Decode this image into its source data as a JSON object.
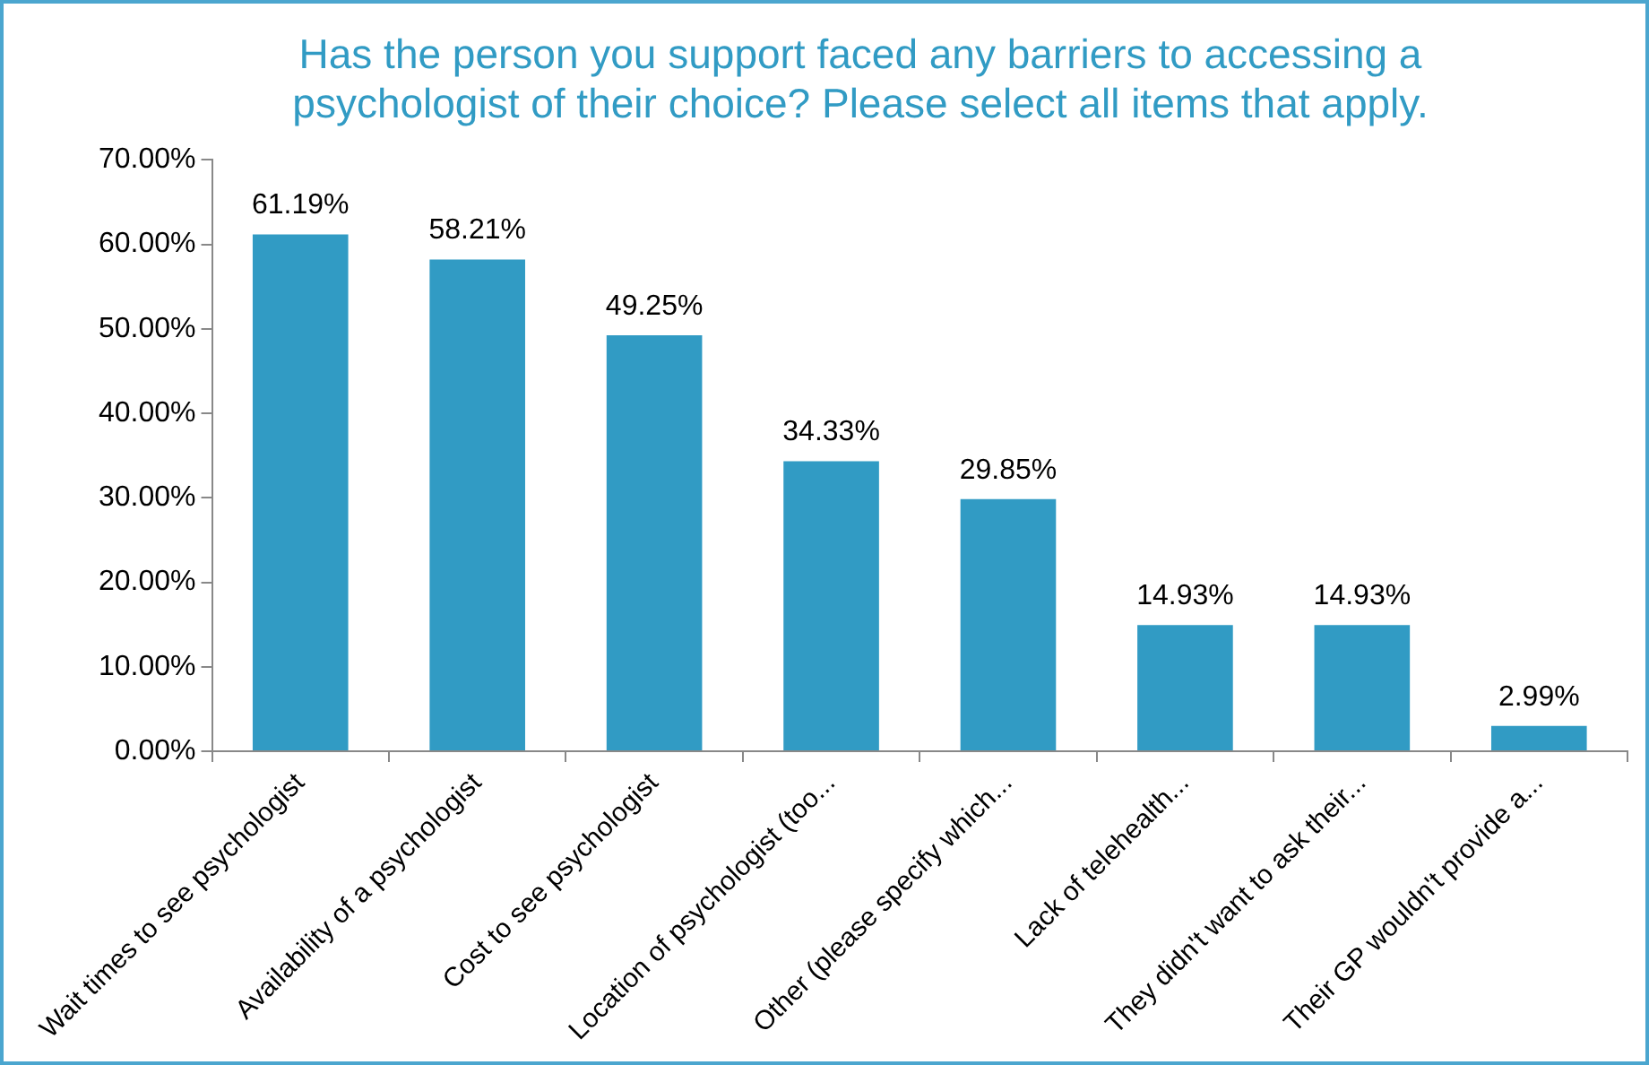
{
  "chart_data": {
    "type": "bar",
    "title": "Has the person you support faced any barriers to accessing a psychologist of their choice? Please select all items that apply.",
    "categories": [
      "Wait times to see psychologist",
      "Availability of a psychologist",
      "Cost to see psychologist",
      "Location of psychologist (too...",
      "Other (please specify which...",
      "Lack of telehealth...",
      "They didn't want to ask their...",
      "Their GP wouldn't provide a..."
    ],
    "values": [
      61.19,
      58.21,
      49.25,
      34.33,
      29.85,
      14.93,
      14.93,
      2.99
    ],
    "value_labels": [
      "61.19%",
      "58.21%",
      "49.25%",
      "34.33%",
      "29.85%",
      "14.93%",
      "14.93%",
      "2.99%"
    ],
    "color": "#319bc4",
    "ylim": [
      0,
      70
    ],
    "yticks": [
      {
        "value": 0,
        "label": "0.00%"
      },
      {
        "value": 10,
        "label": "10.00%"
      },
      {
        "value": 20,
        "label": "20.00%"
      },
      {
        "value": 30,
        "label": "30.00%"
      },
      {
        "value": 40,
        "label": "40.00%"
      },
      {
        "value": 50,
        "label": "50.00%"
      },
      {
        "value": 60,
        "label": "60.00%"
      },
      {
        "value": 70,
        "label": "70.00%"
      }
    ],
    "grid": false,
    "legend": false
  }
}
